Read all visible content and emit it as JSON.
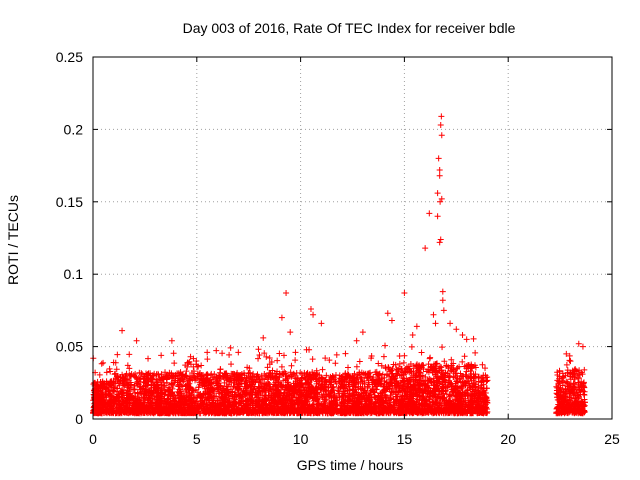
{
  "chart_data": {
    "type": "scatter",
    "title": "Day 003 of 2016, Rate Of TEC Index for receiver bdle",
    "xlabel": "GPS time / hours",
    "ylabel": "ROTI / TECUs",
    "xlim": [
      0,
      25
    ],
    "ylim": [
      0,
      0.25
    ],
    "x_ticks": [
      "0",
      "5",
      "10",
      "15",
      "20",
      "25"
    ],
    "y_ticks": [
      "0",
      "0.05",
      "0.1",
      "0.15",
      "0.2",
      "0.25"
    ],
    "grid": true,
    "marker": "plus",
    "series": [
      {
        "color": "#ff0000",
        "points": [
          [
            1.4,
            0.061
          ],
          [
            9.3,
            0.087
          ],
          [
            15.0,
            0.087
          ],
          [
            10.5,
            0.076
          ],
          [
            10.6,
            0.072
          ],
          [
            11.0,
            0.066
          ],
          [
            14.2,
            0.073
          ],
          [
            14.4,
            0.068
          ],
          [
            8.2,
            0.056
          ],
          [
            9.1,
            0.07
          ],
          [
            9.5,
            0.06
          ],
          [
            12.7,
            0.054
          ],
          [
            3.8,
            0.054
          ],
          [
            2.1,
            0.054
          ],
          [
            16.0,
            0.118
          ],
          [
            16.2,
            0.142
          ],
          [
            16.4,
            0.072
          ],
          [
            16.5,
            0.066
          ],
          [
            16.6,
            0.156
          ],
          [
            16.65,
            0.18
          ],
          [
            16.7,
            0.172
          ],
          [
            16.72,
            0.15
          ],
          [
            16.75,
            0.203
          ],
          [
            16.78,
            0.209
          ],
          [
            16.8,
            0.196
          ],
          [
            16.7,
            0.122
          ],
          [
            16.75,
            0.124
          ],
          [
            16.8,
            0.152
          ],
          [
            16.85,
            0.088
          ],
          [
            16.85,
            0.082
          ],
          [
            16.9,
            0.075
          ],
          [
            16.6,
            0.14
          ],
          [
            16.7,
            0.168
          ],
          [
            17.2,
            0.066
          ],
          [
            17.5,
            0.062
          ],
          [
            17.8,
            0.058
          ],
          [
            18.0,
            0.055
          ],
          [
            15.6,
            0.064
          ],
          [
            15.4,
            0.058
          ],
          [
            13.0,
            0.06
          ],
          [
            7.0,
            0.046
          ],
          [
            5.5,
            0.046
          ],
          [
            4.7,
            0.043
          ],
          [
            23.4,
            0.052
          ],
          [
            23.6,
            0.05
          ],
          [
            22.8,
            0.045
          ],
          [
            23.0,
            0.04
          ]
        ]
      }
    ]
  }
}
